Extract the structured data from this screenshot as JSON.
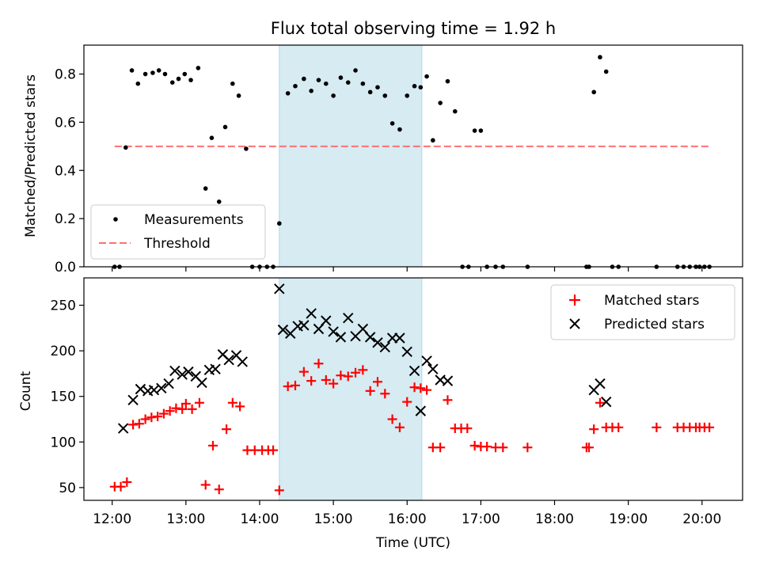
{
  "chart_data": [
    {
      "type": "scatter",
      "title": "Flux total observing time = 1.92 h",
      "ylabel": "Matched/Predicted stars",
      "xlim": [
        "11:37",
        "20:33"
      ],
      "ylim": [
        0,
        0.92
      ],
      "yticks": [
        "0.0",
        "0.2",
        "0.4",
        "0.6",
        "0.8"
      ],
      "highlight_span": [
        "14:16",
        "16:12"
      ],
      "highlight_color": "#add8e6",
      "legend_position": "lower-left",
      "series": [
        {
          "name": "Measurements",
          "marker": "dot",
          "color": "#000000",
          "points": [
            [
              "12:02",
              0
            ],
            [
              "12:06",
              0
            ],
            [
              "12:11",
              0.495
            ],
            [
              "12:16",
              0.815
            ],
            [
              "12:21",
              0.76
            ],
            [
              "12:27",
              0.8
            ],
            [
              "12:33",
              0.805
            ],
            [
              "12:38",
              0.815
            ],
            [
              "12:43",
              0.8
            ],
            [
              "12:49",
              0.765
            ],
            [
              "12:54",
              0.78
            ],
            [
              "12:59",
              0.8
            ],
            [
              "13:04",
              0.775
            ],
            [
              "13:10",
              0.825
            ],
            [
              "13:16",
              0.325
            ],
            [
              "13:21",
              0.535
            ],
            [
              "13:27",
              0.27
            ],
            [
              "13:32",
              0.58
            ],
            [
              "13:38",
              0.76
            ],
            [
              "13:43",
              0.71
            ],
            [
              "13:49",
              0.49
            ],
            [
              "13:54",
              0
            ],
            [
              "14:00",
              0
            ],
            [
              "14:06",
              0
            ],
            [
              "14:11",
              0
            ],
            [
              "14:16",
              0.18
            ],
            [
              "14:23",
              0.72
            ],
            [
              "14:29",
              0.75
            ],
            [
              "14:36",
              0.78
            ],
            [
              "14:42",
              0.73
            ],
            [
              "14:48",
              0.775
            ],
            [
              "14:54",
              0.76
            ],
            [
              "15:00",
              0.71
            ],
            [
              "15:06",
              0.785
            ],
            [
              "15:12",
              0.765
            ],
            [
              "15:18",
              0.815
            ],
            [
              "15:24",
              0.76
            ],
            [
              "15:30",
              0.725
            ],
            [
              "15:36",
              0.745
            ],
            [
              "15:42",
              0.71
            ],
            [
              "15:48",
              0.595
            ],
            [
              "15:54",
              0.57
            ],
            [
              "16:00",
              0.71
            ],
            [
              "16:06",
              0.75
            ],
            [
              "16:11",
              0.745
            ],
            [
              "16:16",
              0.79
            ],
            [
              "16:21",
              0.525
            ],
            [
              "16:27",
              0.68
            ],
            [
              "16:33",
              0.77
            ],
            [
              "16:39",
              0.645
            ],
            [
              "16:45",
              0
            ],
            [
              "16:50",
              0
            ],
            [
              "16:55",
              0.565
            ],
            [
              "17:00",
              0.565
            ],
            [
              "17:05",
              0
            ],
            [
              "17:12",
              0
            ],
            [
              "17:18",
              0
            ],
            [
              "17:38",
              0
            ],
            [
              "18:26",
              0
            ],
            [
              "18:28",
              0
            ],
            [
              "18:32",
              0.725
            ],
            [
              "18:37",
              0.87
            ],
            [
              "18:42",
              0.81
            ],
            [
              "18:47",
              0
            ],
            [
              "18:52",
              0
            ],
            [
              "19:23",
              0
            ],
            [
              "19:40",
              0
            ],
            [
              "19:45",
              0
            ],
            [
              "19:50",
              0
            ],
            [
              "19:55",
              0
            ],
            [
              "19:58",
              0
            ],
            [
              "20:02",
              0
            ],
            [
              "20:06",
              0
            ]
          ]
        },
        {
          "name": "Threshold",
          "style": "dashed",
          "color": "#ff7070",
          "points": [
            [
              "12:02",
              0.5
            ],
            [
              "20:06",
              0.5
            ]
          ]
        }
      ]
    },
    {
      "type": "scatter",
      "xlabel": "Time (UTC)",
      "ylabel": "Count",
      "xlim": [
        "11:37",
        "20:33"
      ],
      "xticks": [
        "12:00",
        "13:00",
        "14:00",
        "15:00",
        "16:00",
        "17:00",
        "18:00",
        "19:00",
        "20:00"
      ],
      "ylim": [
        36,
        280
      ],
      "yticks": [
        "50",
        "100",
        "150",
        "200",
        "250"
      ],
      "highlight_span": [
        "14:16",
        "16:12"
      ],
      "highlight_color": "#add8e6",
      "legend_position": "upper-right",
      "series": [
        {
          "name": "Matched stars",
          "marker": "plus",
          "color": "#ff0000",
          "points": [
            [
              "12:02",
              51
            ],
            [
              "12:07",
              51
            ],
            [
              "12:12",
              56
            ],
            [
              "12:17",
              119
            ],
            [
              "12:22",
              120
            ],
            [
              "12:27",
              125
            ],
            [
              "12:32",
              127
            ],
            [
              "12:37",
              128
            ],
            [
              "12:42",
              131
            ],
            [
              "12:47",
              134
            ],
            [
              "12:52",
              137
            ],
            [
              "12:57",
              136
            ],
            [
              "13:00",
              142
            ],
            [
              "13:05",
              136
            ],
            [
              "13:11",
              143
            ],
            [
              "13:16",
              53
            ],
            [
              "13:22",
              96
            ],
            [
              "13:27",
              48
            ],
            [
              "13:33",
              114
            ],
            [
              "13:38",
              143
            ],
            [
              "13:44",
              139
            ],
            [
              "13:50",
              91
            ],
            [
              "13:56",
              91
            ],
            [
              "14:02",
              91
            ],
            [
              "14:07",
              91
            ],
            [
              "14:11",
              91
            ],
            [
              "14:16",
              47
            ],
            [
              "14:23",
              161
            ],
            [
              "14:29",
              162
            ],
            [
              "14:36",
              177
            ],
            [
              "14:42",
              167
            ],
            [
              "14:48",
              186
            ],
            [
              "14:54",
              168
            ],
            [
              "15:00",
              164
            ],
            [
              "15:06",
              173
            ],
            [
              "15:12",
              172
            ],
            [
              "15:18",
              176
            ],
            [
              "15:24",
              179
            ],
            [
              "15:30",
              156
            ],
            [
              "15:36",
              166
            ],
            [
              "15:42",
              153
            ],
            [
              "15:48",
              125
            ],
            [
              "15:54",
              116
            ],
            [
              "16:00",
              144
            ],
            [
              "16:06",
              160
            ],
            [
              "16:11",
              159
            ],
            [
              "16:16",
              157
            ],
            [
              "16:21",
              94
            ],
            [
              "16:27",
              94
            ],
            [
              "16:33",
              146
            ],
            [
              "16:39",
              115
            ],
            [
              "16:44",
              115
            ],
            [
              "16:49",
              115
            ],
            [
              "16:55",
              96
            ],
            [
              "17:00",
              95
            ],
            [
              "17:05",
              95
            ],
            [
              "17:12",
              94
            ],
            [
              "17:18",
              94
            ],
            [
              "17:38",
              94
            ],
            [
              "18:26",
              94
            ],
            [
              "18:28",
              94
            ],
            [
              "18:32",
              114
            ],
            [
              "18:37",
              143
            ],
            [
              "18:42",
              116
            ],
            [
              "18:47",
              116
            ],
            [
              "18:52",
              116
            ],
            [
              "19:23",
              116
            ],
            [
              "19:40",
              116
            ],
            [
              "19:45",
              116
            ],
            [
              "19:50",
              116
            ],
            [
              "19:55",
              116
            ],
            [
              "19:58",
              116
            ],
            [
              "20:02",
              116
            ],
            [
              "20:06",
              116
            ]
          ]
        },
        {
          "name": "Predicted stars",
          "marker": "x",
          "color": "#000000",
          "points": [
            [
              "12:09",
              115
            ],
            [
              "12:17",
              146
            ],
            [
              "12:23",
              158
            ],
            [
              "12:29",
              156
            ],
            [
              "12:34",
              157
            ],
            [
              "12:40",
              159
            ],
            [
              "12:46",
              164
            ],
            [
              "12:51",
              178
            ],
            [
              "12:57",
              174
            ],
            [
              "13:02",
              177
            ],
            [
              "13:08",
              172
            ],
            [
              "13:13",
              165
            ],
            [
              "13:19",
              179
            ],
            [
              "13:24",
              180
            ],
            [
              "13:30",
              196
            ],
            [
              "13:35",
              190
            ],
            [
              "13:41",
              195
            ],
            [
              "13:46",
              188
            ],
            [
              "14:16",
              268
            ],
            [
              "14:19",
              223
            ],
            [
              "14:25",
              219
            ],
            [
              "14:31",
              227
            ],
            [
              "14:36",
              228
            ],
            [
              "14:42",
              241
            ],
            [
              "14:48",
              224
            ],
            [
              "14:54",
              233
            ],
            [
              "15:00",
              221
            ],
            [
              "15:06",
              215
            ],
            [
              "15:12",
              236
            ],
            [
              "15:18",
              216
            ],
            [
              "15:24",
              224
            ],
            [
              "15:30",
              215
            ],
            [
              "15:36",
              209
            ],
            [
              "15:42",
              204
            ],
            [
              "15:48",
              214
            ],
            [
              "15:54",
              214
            ],
            [
              "16:00",
              199
            ],
            [
              "16:06",
              178
            ],
            [
              "16:11",
              134
            ],
            [
              "16:16",
              189
            ],
            [
              "16:21",
              180
            ],
            [
              "16:27",
              168
            ],
            [
              "16:33",
              167
            ],
            [
              "18:32",
              157
            ],
            [
              "18:37",
              164
            ],
            [
              "18:42",
              144
            ]
          ]
        }
      ]
    }
  ]
}
